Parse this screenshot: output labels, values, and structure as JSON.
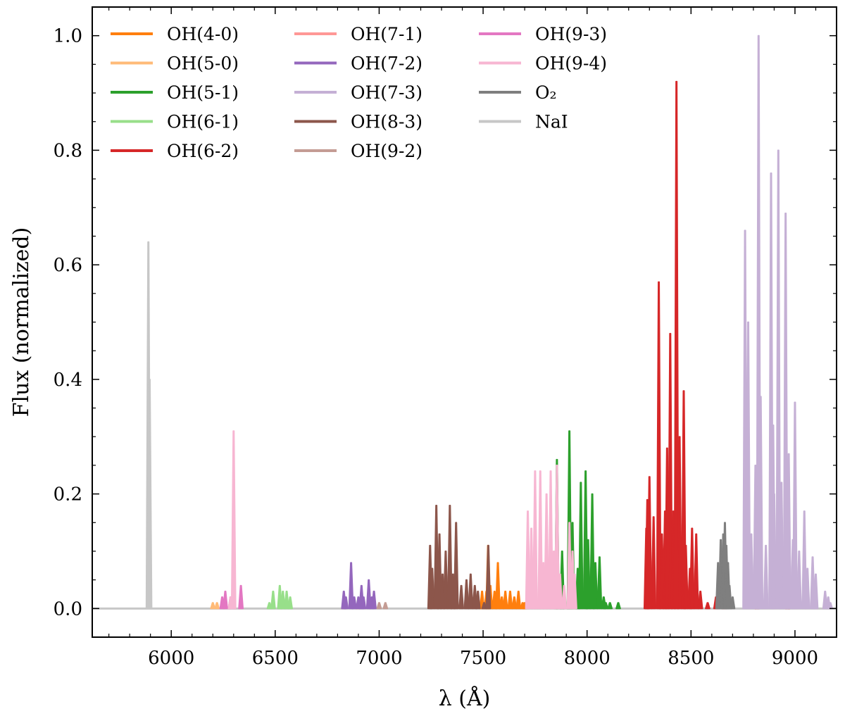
{
  "chart_data": {
    "type": "line",
    "title": "",
    "xlabel": "λ (Å)",
    "ylabel": "Flux (normalized)",
    "xlim": [
      5620,
      9200
    ],
    "ylim": [
      -0.05,
      1.05
    ],
    "xticks": [
      6000,
      6500,
      7000,
      7500,
      8000,
      8500,
      9000
    ],
    "yticks": [
      0.0,
      0.2,
      0.4,
      0.6,
      0.8,
      1.0
    ],
    "ytick_labels": [
      "0.0",
      "0.2",
      "0.4",
      "0.6",
      "0.8",
      "1.0"
    ],
    "grid": false,
    "legend_placement": "top-left, 3 columns",
    "series": [
      {
        "name": "OH(4-0)",
        "color": "#ff7f0e",
        "lines": [
          [
            7495,
            0.03
          ],
          [
            7516,
            0.03
          ],
          [
            7524,
            0.11
          ],
          [
            7535,
            0.04
          ],
          [
            7555,
            0.03
          ],
          [
            7571,
            0.08
          ],
          [
            7590,
            0.02
          ],
          [
            7607,
            0.03
          ],
          [
            7630,
            0.03
          ],
          [
            7650,
            0.02
          ],
          [
            7670,
            0.03
          ],
          [
            7690,
            0.01
          ],
          [
            7700,
            0.01
          ]
        ]
      },
      {
        "name": "OH(5-0)",
        "color": "#ffbb78",
        "lines": [
          [
            6200,
            0.01
          ],
          [
            6220,
            0.01
          ]
        ]
      },
      {
        "name": "OH(5-1)",
        "color": "#2ca02c",
        "lines": [
          [
            7855,
            0.26
          ],
          [
            7880,
            0.1
          ],
          [
            7915,
            0.31
          ],
          [
            7930,
            0.15
          ],
          [
            7955,
            0.07
          ],
          [
            7970,
            0.22
          ],
          [
            7993,
            0.24
          ],
          [
            8005,
            0.12
          ],
          [
            8025,
            0.2
          ],
          [
            8040,
            0.08
          ],
          [
            8060,
            0.09
          ],
          [
            8080,
            0.02
          ],
          [
            8090,
            0.01
          ],
          [
            8110,
            0.01
          ],
          [
            8150,
            0.01
          ]
        ]
      },
      {
        "name": "OH(6-1)",
        "color": "#98df8a",
        "lines": [
          [
            6472,
            0.01
          ],
          [
            6490,
            0.03
          ],
          [
            6522,
            0.04
          ],
          [
            6537,
            0.03
          ],
          [
            6555,
            0.03
          ],
          [
            6572,
            0.02
          ]
        ]
      },
      {
        "name": "OH(6-2)",
        "color": "#d62728",
        "lines": [
          [
            8285,
            0.14
          ],
          [
            8290,
            0.19
          ],
          [
            8300,
            0.23
          ],
          [
            8320,
            0.16
          ],
          [
            8345,
            0.57
          ],
          [
            8360,
            0.13
          ],
          [
            8375,
            0.17
          ],
          [
            8385,
            0.28
          ],
          [
            8400,
            0.48
          ],
          [
            8415,
            0.17
          ],
          [
            8430,
            0.92
          ],
          [
            8445,
            0.3
          ],
          [
            8465,
            0.38
          ],
          [
            8475,
            0.11
          ],
          [
            8495,
            0.07
          ],
          [
            8505,
            0.14
          ],
          [
            8525,
            0.13
          ],
          [
            8545,
            0.03
          ],
          [
            8580,
            0.01
          ],
          [
            8620,
            0.02
          ],
          [
            8660,
            0.02
          ],
          [
            8818,
            0.02
          ],
          [
            8965,
            0.01
          ]
        ]
      },
      {
        "name": "OH(7-1)",
        "color": "#ff9896",
        "lines": [
          [
            6830,
            0.01
          ],
          [
            6900,
            0.01
          ]
        ]
      },
      {
        "name": "OH(7-2)",
        "color": "#9467bd",
        "lines": [
          [
            6830,
            0.03
          ],
          [
            6840,
            0.02
          ],
          [
            6865,
            0.08
          ],
          [
            6880,
            0.02
          ],
          [
            6900,
            0.02
          ],
          [
            6915,
            0.04
          ],
          [
            6925,
            0.02
          ],
          [
            6950,
            0.05
          ],
          [
            6965,
            0.02
          ],
          [
            6975,
            0.03
          ]
        ]
      },
      {
        "name": "OH(7-3)",
        "color": "#c5b0d5",
        "lines": [
          [
            8760,
            0.66
          ],
          [
            8775,
            0.5
          ],
          [
            8790,
            0.13
          ],
          [
            8810,
            0.25
          ],
          [
            8825,
            1.0
          ],
          [
            8835,
            0.37
          ],
          [
            8860,
            0.11
          ],
          [
            8885,
            0.76
          ],
          [
            8895,
            0.32
          ],
          [
            8900,
            0.2
          ],
          [
            8920,
            0.8
          ],
          [
            8935,
            0.22
          ],
          [
            8955,
            0.69
          ],
          [
            8970,
            0.27
          ],
          [
            8990,
            0.12
          ],
          [
            9000,
            0.36
          ],
          [
            9020,
            0.1
          ],
          [
            9045,
            0.17
          ],
          [
            9060,
            0.07
          ],
          [
            9085,
            0.09
          ],
          [
            9100,
            0.06
          ],
          [
            9145,
            0.03
          ],
          [
            9160,
            0.02
          ],
          [
            9170,
            0.01
          ]
        ]
      },
      {
        "name": "OH(8-3)",
        "color": "#8c564b",
        "lines": [
          [
            7245,
            0.11
          ],
          [
            7255,
            0.07
          ],
          [
            7275,
            0.18
          ],
          [
            7290,
            0.13
          ],
          [
            7305,
            0.06
          ],
          [
            7320,
            0.1
          ],
          [
            7340,
            0.18
          ],
          [
            7355,
            0.06
          ],
          [
            7370,
            0.15
          ],
          [
            7395,
            0.04
          ],
          [
            7420,
            0.05
          ],
          [
            7440,
            0.06
          ],
          [
            7460,
            0.04
          ],
          [
            7475,
            0.03
          ],
          [
            7505,
            0.01
          ],
          [
            7525,
            0.11
          ]
        ]
      },
      {
        "name": "OH(9-2)",
        "color": "#c49c94",
        "lines": [
          [
            7000,
            0.01
          ],
          [
            7030,
            0.01
          ]
        ]
      },
      {
        "name": "OH(9-3)",
        "color": "#e377c2",
        "lines": [
          [
            6245,
            0.02
          ],
          [
            6260,
            0.03
          ],
          [
            6285,
            0.02
          ],
          [
            6300,
            0.02
          ],
          [
            6335,
            0.04
          ]
        ]
      },
      {
        "name": "OH(9-4)",
        "color": "#f7b6d2",
        "lines": [
          [
            6285,
            0.02
          ],
          [
            6300,
            0.31
          ],
          [
            7715,
            0.17
          ],
          [
            7732,
            0.14
          ],
          [
            7750,
            0.24
          ],
          [
            7775,
            0.24
          ],
          [
            7790,
            0.08
          ],
          [
            7805,
            0.2
          ],
          [
            7825,
            0.24
          ],
          [
            7840,
            0.1
          ],
          [
            7855,
            0.25
          ],
          [
            7870,
            0.06
          ],
          [
            7890,
            0.04
          ],
          [
            7915,
            0.15
          ],
          [
            7930,
            0.1
          ],
          [
            7940,
            0.06
          ]
        ]
      },
      {
        "name": "O₂",
        "color": "#7f7f7f",
        "lines": [
          [
            8630,
            0.08
          ],
          [
            8643,
            0.12
          ],
          [
            8655,
            0.13
          ],
          [
            8663,
            0.15
          ],
          [
            8670,
            0.11
          ],
          [
            8678,
            0.08
          ],
          [
            8685,
            0.04
          ],
          [
            8700,
            0.02
          ]
        ]
      },
      {
        "name": "NaI",
        "color": "#c7c7c7",
        "lines": [
          [
            5890,
            0.64
          ],
          [
            5896,
            0.4
          ]
        ]
      }
    ]
  }
}
